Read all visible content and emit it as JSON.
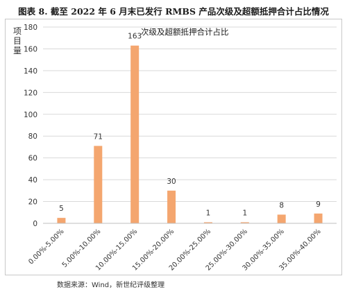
{
  "figure": {
    "caption": "图表 8.   截至 2022 年 6 月末已发行 RMBS 产品次级及超额抵押合计占比情况",
    "source": "数据来源：Wind，新世纪评级整理"
  },
  "colors": {
    "bar": "#F4A66F",
    "grid": "#d9d9d9",
    "axis": "#bfbfbf",
    "text": "#333333"
  },
  "chart_data": {
    "type": "bar",
    "title": "次级及超额抵押合计占比",
    "xlabel": "",
    "ylabel": "项目量",
    "ylim": [
      0,
      180
    ],
    "yticks": [
      0,
      20,
      40,
      60,
      80,
      100,
      120,
      140,
      160,
      180
    ],
    "grid": true,
    "categories": [
      "0.00%-5.00%",
      "5.00%-10.00%",
      "10.00%-15.00%",
      "15.00%-20.00%",
      "20.00%-25.00%",
      "25.00%-30.00%",
      "30.00%-35.00%",
      "35.00%-40.00%"
    ],
    "values": [
      5,
      71,
      163,
      30,
      1,
      1,
      8,
      9
    ]
  }
}
